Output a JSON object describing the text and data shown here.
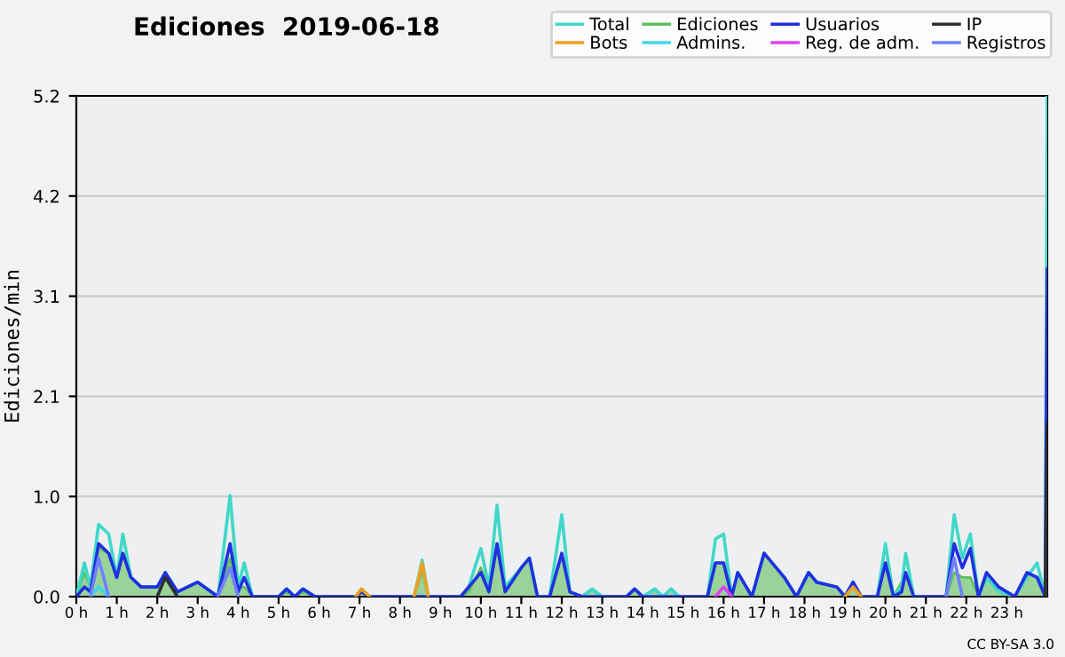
{
  "chart_data": {
    "type": "line",
    "title": "Ediciones  2019-06-18",
    "ylabel": "Ediciones/min",
    "x": [
      0,
      0.2,
      0.35,
      0.55,
      0.8,
      1.0,
      1.15,
      1.35,
      1.6,
      2.0,
      2.2,
      2.5,
      3.0,
      3.5,
      3.8,
      4.0,
      4.15,
      4.35,
      5.0,
      5.2,
      5.4,
      5.6,
      5.9,
      6.9,
      7.05,
      7.25,
      8.35,
      8.55,
      8.7,
      9.5,
      9.7,
      10.0,
      10.2,
      10.4,
      10.6,
      11.0,
      11.2,
      11.4,
      11.7,
      12.0,
      12.2,
      12.5,
      12.75,
      13.0,
      13.6,
      13.8,
      14.0,
      14.3,
      14.5,
      14.7,
      14.9,
      15.6,
      15.8,
      16.0,
      16.2,
      16.35,
      16.7,
      17.0,
      17.5,
      17.8,
      18.1,
      18.3,
      18.8,
      19.0,
      19.2,
      19.4,
      19.8,
      20.0,
      20.2,
      20.4,
      20.5,
      20.7,
      21.5,
      21.7,
      21.9,
      22.1,
      22.3,
      22.5,
      22.8,
      23.2,
      23.5,
      23.75,
      23.95,
      24.0
    ],
    "series": [
      {
        "name": "Ediciones",
        "type": "area",
        "color": "#60c060",
        "values": [
          0,
          0.25,
          0.1,
          0.5,
          0.45,
          0.2,
          0.45,
          0.2,
          0.1,
          0.1,
          0.25,
          0.05,
          0.15,
          0,
          0.4,
          0.1,
          0.1,
          0,
          0,
          0.05,
          0,
          0.05,
          0,
          0,
          0.05,
          0,
          0,
          0.28,
          0,
          0,
          0.05,
          0.3,
          0.1,
          0.5,
          0.1,
          0.3,
          0.4,
          0,
          0,
          0.45,
          0.05,
          0,
          0.08,
          0,
          0,
          0.08,
          0,
          0.08,
          0,
          0.08,
          0,
          0,
          0.35,
          0.35,
          0,
          0.25,
          0,
          0.45,
          0.2,
          0,
          0.25,
          0.15,
          0.1,
          0,
          0.15,
          0,
          0,
          0.35,
          0,
          0.15,
          0.25,
          0,
          0,
          0.25,
          0.2,
          0.2,
          0,
          0.25,
          0.1,
          0,
          0.25,
          0.2,
          0,
          1.8
        ]
      },
      {
        "name": "Total",
        "color": "#40d8c8",
        "values": [
          0,
          0.35,
          0.1,
          0.75,
          0.65,
          0.2,
          0.65,
          0.2,
          0.1,
          0.1,
          0.25,
          0.05,
          0.15,
          0,
          1.05,
          0.1,
          0.35,
          0,
          0,
          0.08,
          0,
          0.08,
          0,
          0,
          0.08,
          0,
          0,
          0.38,
          0,
          0,
          0.1,
          0.5,
          0.1,
          0.95,
          0.1,
          0.3,
          0.4,
          0,
          0,
          0.85,
          0.05,
          0,
          0.08,
          0,
          0,
          0.08,
          0,
          0.08,
          0,
          0.08,
          0,
          0,
          0.6,
          0.65,
          0,
          0.25,
          0,
          0.45,
          0.2,
          0,
          0.25,
          0.15,
          0.1,
          0,
          0.15,
          0,
          0,
          0.55,
          0,
          0.1,
          0.45,
          0,
          0,
          0.85,
          0.4,
          0.65,
          0,
          0.2,
          0.05,
          0,
          0.2,
          0.35,
          0,
          5.2
        ]
      },
      {
        "name": "Usuarios",
        "color": "#2030e0",
        "values": [
          0,
          0.1,
          0.05,
          0.55,
          0.45,
          0.2,
          0.45,
          0.2,
          0.1,
          0.1,
          0.25,
          0.05,
          0.15,
          0,
          0.55,
          0.05,
          0.2,
          0,
          0,
          0.08,
          0,
          0.08,
          0,
          0,
          0.05,
          0,
          0,
          0,
          0,
          0,
          0.1,
          0.25,
          0.05,
          0.55,
          0.05,
          0.3,
          0.4,
          0,
          0,
          0.45,
          0.05,
          0,
          0,
          0,
          0,
          0.08,
          0,
          0,
          0,
          0,
          0,
          0,
          0.35,
          0.35,
          0,
          0.25,
          0,
          0.45,
          0.2,
          0,
          0.25,
          0.15,
          0.1,
          0,
          0.15,
          0,
          0,
          0.35,
          0,
          0.05,
          0.25,
          0,
          0,
          0.55,
          0.3,
          0.5,
          0,
          0.25,
          0.1,
          0,
          0.25,
          0.2,
          0,
          3.4
        ]
      },
      {
        "name": "IP",
        "color": "#303030",
        "x": [
          2.0,
          2.2,
          2.5,
          12,
          23.95,
          24.0
        ],
        "values": [
          0,
          0.2,
          0,
          null,
          0,
          1.8
        ]
      },
      {
        "name": "Bots",
        "color": "#f0a020",
        "x": [
          6.9,
          7.05,
          7.25,
          7.8,
          8.35,
          8.55,
          8.7,
          14,
          19.0,
          19.2,
          19.4
        ],
        "values": [
          0,
          0.08,
          0,
          null,
          0,
          0.35,
          0,
          null,
          0,
          0.1,
          0
        ]
      },
      {
        "name": "Admins.",
        "color": "#40d8e8",
        "x": [
          0.35,
          0.55,
          0.8
        ],
        "values": [
          0,
          0.1,
          0
        ]
      },
      {
        "name": "Reg. de adm.",
        "color": "#e040f0",
        "x": [
          15.8,
          16.0,
          16.2
        ],
        "values": [
          0,
          0.1,
          0
        ]
      },
      {
        "name": "Registros",
        "color": "#7080ff",
        "x": [
          0.35,
          0.55,
          0.8,
          2,
          3.5,
          3.8,
          4.0,
          10,
          21.5,
          21.7,
          21.9
        ],
        "values": [
          0,
          0.4,
          0,
          null,
          0,
          0.3,
          0,
          null,
          0,
          0.4,
          0
        ]
      }
    ],
    "xlim": [
      0,
      24
    ],
    "xticks": [
      {
        "value": 0,
        "label": "0 h"
      },
      {
        "value": 1,
        "label": "1 h"
      },
      {
        "value": 2,
        "label": "2 h"
      },
      {
        "value": 3,
        "label": "3 h"
      },
      {
        "value": 4,
        "label": "4 h"
      },
      {
        "value": 5,
        "label": "5 h"
      },
      {
        "value": 6,
        "label": "6 h"
      },
      {
        "value": 7,
        "label": "7 h"
      },
      {
        "value": 8,
        "label": "8 h"
      },
      {
        "value": 9,
        "label": "9 h"
      },
      {
        "value": 10,
        "label": "10 h"
      },
      {
        "value": 11,
        "label": "11 h"
      },
      {
        "value": 12,
        "label": "12 h"
      },
      {
        "value": 13,
        "label": "13 h"
      },
      {
        "value": 14,
        "label": "14 h"
      },
      {
        "value": 15,
        "label": "15 h"
      },
      {
        "value": 16,
        "label": "16 h"
      },
      {
        "value": 17,
        "label": "17 h"
      },
      {
        "value": 18,
        "label": "18 h"
      },
      {
        "value": 19,
        "label": "19 h"
      },
      {
        "value": 20,
        "label": "20 h"
      },
      {
        "value": 21,
        "label": "21 h"
      },
      {
        "value": 22,
        "label": "22 h"
      },
      {
        "value": 23,
        "label": "23 h"
      }
    ],
    "ylim": [
      0,
      5.2
    ],
    "yticks": [
      {
        "value": 0,
        "label": "0.0"
      },
      {
        "value": 1.04,
        "label": "1.0"
      },
      {
        "value": 2.08,
        "label": "2.1"
      },
      {
        "value": 3.12,
        "label": "3.1"
      },
      {
        "value": 4.16,
        "label": "4.2"
      },
      {
        "value": 5.2,
        "label": "5.2"
      }
    ],
    "grid": "y",
    "legend": "top right",
    "annotations": [
      "CC BY-SA 3.0"
    ]
  }
}
